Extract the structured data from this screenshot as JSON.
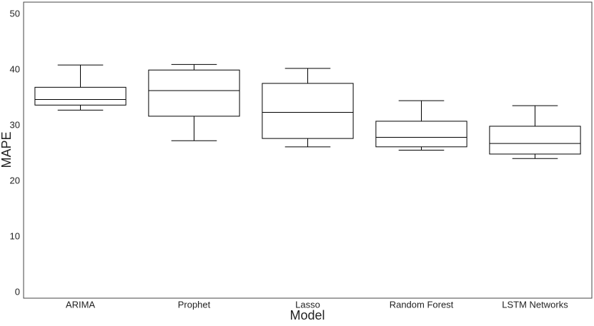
{
  "chart_data": {
    "type": "box",
    "x_label": "Model",
    "y_label": "MAPE",
    "categories": [
      "ARIMA",
      "Prophet",
      "Lasso",
      "Random Forest",
      "LSTM Networks"
    ],
    "low": [
      32.8,
      27.3,
      26.2,
      25.6,
      24.1
    ],
    "q1": [
      33.7,
      31.7,
      27.7,
      26.2,
      24.9
    ],
    "median": [
      34.7,
      36.3,
      32.4,
      27.9,
      26.8
    ],
    "q3": [
      36.9,
      40.0,
      37.6,
      30.8,
      29.9
    ],
    "high": [
      40.9,
      41.0,
      40.3,
      34.5,
      33.6
    ],
    "color": "#000000",
    "ylim": [
      -1,
      52.2
    ],
    "yticks": [
      0,
      10,
      20,
      30,
      40,
      50
    ],
    "grid": false
  }
}
